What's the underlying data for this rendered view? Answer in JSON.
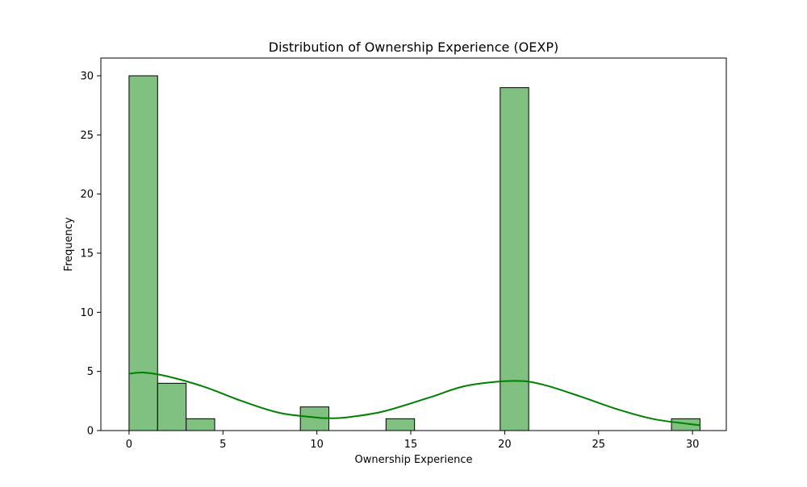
{
  "chart_data": {
    "type": "bar",
    "title": "Distribution of Ownership Experience (OEXP)",
    "xlabel": "Ownership Experience",
    "ylabel": "Frequency",
    "xlim": [
      -1.5,
      31.8
    ],
    "ylim": [
      0,
      31.5
    ],
    "xticks": [
      0,
      5,
      10,
      15,
      20,
      25,
      30
    ],
    "yticks": [
      0,
      5,
      10,
      15,
      20,
      25,
      30
    ],
    "bin_width": 1.52,
    "bins": [
      {
        "x0": 0,
        "x1": 1.52,
        "count": 30
      },
      {
        "x0": 1.52,
        "x1": 3.04,
        "count": 4
      },
      {
        "x0": 3.04,
        "x1": 4.56,
        "count": 1
      },
      {
        "x0": 4.56,
        "x1": 6.08,
        "count": 0
      },
      {
        "x0": 6.08,
        "x1": 7.6,
        "count": 0
      },
      {
        "x0": 7.6,
        "x1": 9.12,
        "count": 0
      },
      {
        "x0": 9.12,
        "x1": 10.64,
        "count": 2
      },
      {
        "x0": 10.64,
        "x1": 12.16,
        "count": 0
      },
      {
        "x0": 12.16,
        "x1": 13.68,
        "count": 0
      },
      {
        "x0": 13.68,
        "x1": 15.2,
        "count": 1
      },
      {
        "x0": 15.2,
        "x1": 16.72,
        "count": 0
      },
      {
        "x0": 16.72,
        "x1": 18.24,
        "count": 0
      },
      {
        "x0": 18.24,
        "x1": 19.76,
        "count": 0
      },
      {
        "x0": 19.76,
        "x1": 21.28,
        "count": 29
      },
      {
        "x0": 21.28,
        "x1": 22.8,
        "count": 0
      },
      {
        "x0": 22.8,
        "x1": 24.32,
        "count": 0
      },
      {
        "x0": 24.32,
        "x1": 25.84,
        "count": 0
      },
      {
        "x0": 25.84,
        "x1": 27.36,
        "count": 0
      },
      {
        "x0": 27.36,
        "x1": 28.88,
        "count": 0
      },
      {
        "x0": 28.88,
        "x1": 30.4,
        "count": 1
      }
    ],
    "kde": {
      "x": [
        0,
        0.8,
        2,
        4,
        6,
        8,
        10,
        10.5,
        11.5,
        13.5,
        16,
        18,
        20.5,
        22,
        24,
        26,
        28,
        30.4
      ],
      "y": [
        4.8,
        4.9,
        4.6,
        3.7,
        2.5,
        1.5,
        1.1,
        1.05,
        1.1,
        1.6,
        2.8,
        3.8,
        4.2,
        3.9,
        2.9,
        1.8,
        0.95,
        0.45
      ]
    },
    "grid": false,
    "colors": {
      "bar_fill": "#80c080",
      "bar_edge": "#000000",
      "kde_line": "#008000"
    }
  }
}
